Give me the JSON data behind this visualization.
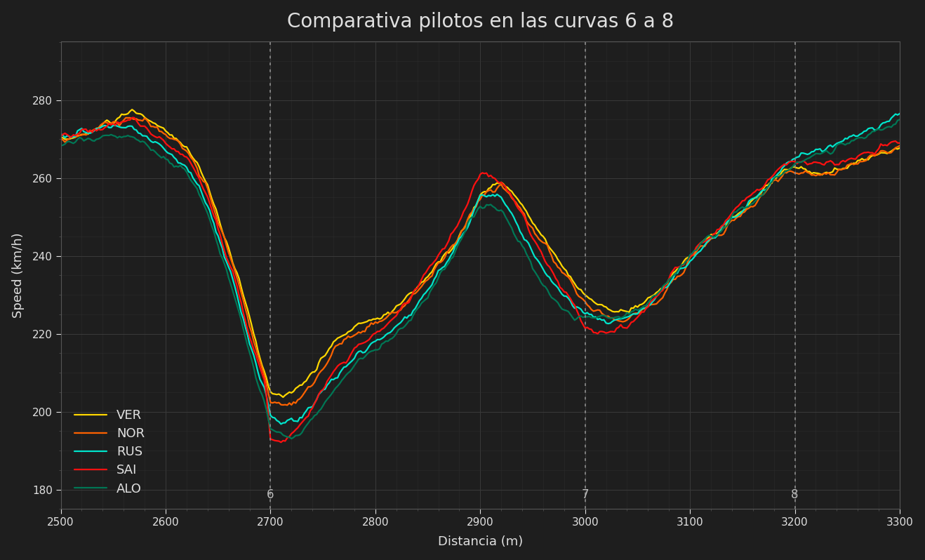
{
  "title": "Comparativa pilotos en las curvas 6 a 8",
  "xlabel": "Distancia (m)",
  "ylabel": "Speed (km/h)",
  "background_color": "#1e1e1e",
  "text_color": "#e0e0e0",
  "grid_color": "#3a3a3a",
  "xlim": [
    2500,
    3300
  ],
  "ylim": [
    175,
    295
  ],
  "xticks": [
    2500,
    2600,
    2700,
    2800,
    2900,
    3000,
    3100,
    3200,
    3300
  ],
  "yticks": [
    180,
    200,
    220,
    240,
    260,
    280
  ],
  "vlines": [
    2700,
    3000,
    3200
  ],
  "vline_labels": [
    "6",
    "7",
    "8"
  ],
  "series_order": [
    "VER",
    "NOR",
    "RUS",
    "SAI",
    "ALO"
  ],
  "series": {
    "VER": {
      "color": "#FFD700",
      "lw": 1.6
    },
    "NOR": {
      "color": "#FF6200",
      "lw": 1.6
    },
    "RUS": {
      "color": "#00E5CC",
      "lw": 1.6
    },
    "SAI": {
      "color": "#FF1010",
      "lw": 1.6
    },
    "ALO": {
      "color": "#007755",
      "lw": 1.6
    }
  },
  "driver_waypoints": {
    "VER": {
      "x": [
        2500,
        2510,
        2520,
        2530,
        2540,
        2550,
        2560,
        2570,
        2575,
        2580,
        2585,
        2590,
        2595,
        2600,
        2610,
        2620,
        2630,
        2640,
        2650,
        2660,
        2670,
        2680,
        2690,
        2695,
        2700,
        2705,
        2710,
        2720,
        2730,
        2740,
        2750,
        2760,
        2770,
        2780,
        2790,
        2800,
        2810,
        2820,
        2830,
        2840,
        2850,
        2860,
        2870,
        2880,
        2890,
        2900,
        2910,
        2920,
        2930,
        2940,
        2950,
        2960,
        2970,
        2980,
        2990,
        3000,
        3010,
        3020,
        3030,
        3040,
        3050,
        3060,
        3070,
        3080,
        3090,
        3100,
        3110,
        3120,
        3130,
        3140,
        3150,
        3160,
        3170,
        3180,
        3190,
        3200,
        3210,
        3220,
        3230,
        3240,
        3250,
        3260,
        3270,
        3280,
        3290,
        3300
      ],
      "y": [
        270,
        270,
        271,
        272,
        274,
        275,
        276,
        277,
        277,
        276,
        275,
        274,
        273,
        272,
        270,
        268,
        264,
        258,
        250,
        242,
        234,
        224,
        214,
        210,
        205,
        204,
        204,
        205,
        207,
        210,
        214,
        218,
        220,
        222,
        223,
        224,
        225,
        227,
        229,
        232,
        235,
        238,
        241,
        245,
        250,
        255,
        258,
        259,
        257,
        253,
        249,
        245,
        241,
        237,
        233,
        230,
        228,
        227,
        226,
        226,
        227,
        229,
        231,
        234,
        237,
        240,
        243,
        245,
        247,
        250,
        252,
        254,
        257,
        260,
        262,
        263,
        262,
        261,
        261,
        262,
        263,
        264,
        265,
        266,
        267,
        268
      ]
    },
    "NOR": {
      "x": [
        2500,
        2510,
        2520,
        2530,
        2540,
        2550,
        2560,
        2570,
        2575,
        2580,
        2585,
        2590,
        2595,
        2600,
        2610,
        2620,
        2630,
        2640,
        2650,
        2660,
        2670,
        2680,
        2690,
        2695,
        2700,
        2705,
        2710,
        2720,
        2730,
        2740,
        2750,
        2760,
        2770,
        2780,
        2790,
        2800,
        2810,
        2820,
        2830,
        2840,
        2850,
        2860,
        2870,
        2880,
        2890,
        2900,
        2910,
        2920,
        2930,
        2940,
        2950,
        2960,
        2970,
        2980,
        2990,
        3000,
        3010,
        3020,
        3030,
        3040,
        3050,
        3060,
        3070,
        3080,
        3090,
        3100,
        3110,
        3120,
        3130,
        3140,
        3150,
        3160,
        3170,
        3180,
        3190,
        3200,
        3210,
        3220,
        3230,
        3240,
        3250,
        3260,
        3270,
        3280,
        3290,
        3300
      ],
      "y": [
        270,
        270,
        271,
        272,
        274,
        274,
        275,
        275,
        275,
        275,
        274,
        273,
        272,
        271,
        269,
        267,
        263,
        257,
        249,
        241,
        233,
        222,
        213,
        209,
        203,
        202,
        201,
        202,
        204,
        207,
        211,
        216,
        218,
        220,
        221,
        223,
        224,
        226,
        228,
        231,
        234,
        238,
        241,
        245,
        250,
        255,
        257,
        258,
        255,
        251,
        247,
        243,
        239,
        236,
        232,
        228,
        226,
        225,
        224,
        224,
        225,
        227,
        229,
        232,
        235,
        239,
        242,
        244,
        246,
        249,
        251,
        253,
        256,
        259,
        261,
        261,
        261,
        261,
        261,
        262,
        263,
        264,
        265,
        266,
        267,
        268
      ]
    },
    "RUS": {
      "x": [
        2500,
        2510,
        2520,
        2530,
        2540,
        2550,
        2560,
        2570,
        2575,
        2580,
        2585,
        2590,
        2595,
        2600,
        2610,
        2620,
        2630,
        2640,
        2650,
        2660,
        2670,
        2680,
        2690,
        2695,
        2700,
        2705,
        2710,
        2720,
        2730,
        2740,
        2750,
        2760,
        2770,
        2780,
        2790,
        2800,
        2810,
        2820,
        2830,
        2840,
        2850,
        2860,
        2870,
        2880,
        2890,
        2900,
        2910,
        2920,
        2930,
        2940,
        2950,
        2960,
        2970,
        2980,
        2990,
        3000,
        3010,
        3020,
        3030,
        3040,
        3050,
        3060,
        3070,
        3080,
        3090,
        3100,
        3110,
        3120,
        3130,
        3140,
        3150,
        3160,
        3170,
        3180,
        3190,
        3200,
        3210,
        3220,
        3230,
        3240,
        3250,
        3260,
        3270,
        3280,
        3290,
        3300
      ],
      "y": [
        271,
        271,
        272,
        272,
        273,
        273,
        273,
        273,
        272,
        271,
        270,
        269,
        268,
        267,
        265,
        263,
        259,
        253,
        245,
        237,
        228,
        218,
        209,
        205,
        199,
        198,
        197,
        197,
        199,
        202,
        205,
        208,
        211,
        214,
        216,
        218,
        220,
        222,
        224,
        227,
        231,
        235,
        239,
        244,
        249,
        255,
        256,
        255,
        251,
        246,
        241,
        237,
        233,
        230,
        227,
        225,
        224,
        223,
        223,
        224,
        225,
        227,
        230,
        233,
        236,
        239,
        242,
        244,
        247,
        250,
        252,
        254,
        257,
        260,
        263,
        265,
        266,
        267,
        268,
        269,
        270,
        271,
        272,
        273,
        275,
        277
      ]
    },
    "SAI": {
      "x": [
        2500,
        2510,
        2520,
        2530,
        2540,
        2550,
        2560,
        2570,
        2575,
        2580,
        2585,
        2590,
        2595,
        2600,
        2610,
        2620,
        2630,
        2640,
        2650,
        2660,
        2670,
        2680,
        2690,
        2695,
        2700,
        2705,
        2710,
        2720,
        2730,
        2740,
        2750,
        2760,
        2770,
        2780,
        2790,
        2800,
        2810,
        2820,
        2830,
        2840,
        2850,
        2860,
        2870,
        2880,
        2890,
        2900,
        2910,
        2920,
        2930,
        2940,
        2950,
        2960,
        2970,
        2980,
        2990,
        3000,
        3010,
        3020,
        3030,
        3040,
        3050,
        3060,
        3070,
        3080,
        3090,
        3100,
        3110,
        3120,
        3130,
        3140,
        3150,
        3160,
        3170,
        3180,
        3190,
        3200,
        3210,
        3220,
        3230,
        3240,
        3250,
        3260,
        3270,
        3280,
        3290,
        3300
      ],
      "y": [
        271,
        271,
        272,
        272,
        273,
        274,
        275,
        275,
        274,
        273,
        272,
        271,
        270,
        269,
        267,
        265,
        261,
        255,
        247,
        239,
        230,
        220,
        211,
        207,
        193,
        192,
        192,
        194,
        197,
        201,
        205,
        210,
        213,
        216,
        218,
        220,
        222,
        225,
        228,
        232,
        236,
        240,
        244,
        249,
        255,
        261,
        261,
        259,
        255,
        250,
        245,
        240,
        235,
        231,
        227,
        221,
        220,
        220,
        221,
        222,
        224,
        227,
        230,
        234,
        237,
        240,
        243,
        245,
        248,
        251,
        254,
        256,
        258,
        261,
        263,
        264,
        264,
        264,
        264,
        264,
        265,
        266,
        267,
        268,
        269,
        270
      ]
    },
    "ALO": {
      "x": [
        2500,
        2510,
        2520,
        2530,
        2540,
        2550,
        2560,
        2570,
        2575,
        2580,
        2585,
        2590,
        2595,
        2600,
        2610,
        2620,
        2630,
        2640,
        2650,
        2660,
        2670,
        2680,
        2690,
        2695,
        2700,
        2705,
        2710,
        2720,
        2730,
        2740,
        2750,
        2760,
        2770,
        2780,
        2790,
        2800,
        2810,
        2820,
        2830,
        2840,
        2850,
        2860,
        2870,
        2880,
        2890,
        2900,
        2910,
        2920,
        2930,
        2940,
        2950,
        2960,
        2970,
        2980,
        2990,
        3000,
        3010,
        3020,
        3030,
        3040,
        3050,
        3060,
        3070,
        3080,
        3090,
        3100,
        3110,
        3120,
        3130,
        3140,
        3150,
        3160,
        3170,
        3180,
        3190,
        3200,
        3210,
        3220,
        3230,
        3240,
        3250,
        3260,
        3270,
        3280,
        3290,
        3300
      ],
      "y": [
        269,
        269,
        270,
        270,
        271,
        271,
        271,
        271,
        270,
        269,
        268,
        267,
        266,
        265,
        263,
        261,
        257,
        251,
        243,
        235,
        226,
        215,
        206,
        202,
        196,
        195,
        194,
        193,
        195,
        198,
        202,
        205,
        208,
        212,
        214,
        216,
        218,
        220,
        223,
        226,
        230,
        234,
        238,
        243,
        249,
        253,
        253,
        251,
        247,
        242,
        237,
        233,
        229,
        226,
        224,
        225,
        224,
        224,
        224,
        225,
        226,
        228,
        231,
        234,
        237,
        240,
        243,
        245,
        247,
        250,
        252,
        254,
        256,
        259,
        262,
        264,
        265,
        266,
        267,
        268,
        269,
        270,
        271,
        272,
        273,
        275
      ]
    }
  }
}
